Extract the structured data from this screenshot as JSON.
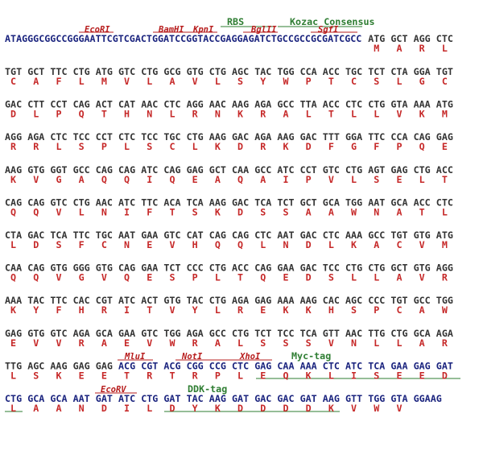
{
  "header": {
    "sequence": "ATAGGGCGGCCGGGAATTCGTCGACTGGATCCGGTACCGAGGAGATCTGCCGCCGCGATCGCC",
    "codons": [
      "ATG",
      "GCT",
      "AGG",
      "CTC"
    ],
    "amino_acids": [
      "M",
      "A",
      "R",
      "L"
    ]
  },
  "annotations": [
    "EcoRI",
    "BamHI",
    "KpnI",
    "RBS",
    "BglII",
    "Kozac Consensus",
    "SgfI",
    "MluI",
    "NotI",
    "XhoI",
    "Myc-tag",
    "EcoRV",
    "DDK-tag"
  ],
  "rows": [
    {
      "codons": [
        "TGT",
        "GCT",
        "TTC",
        "CTG",
        "ATG",
        "GTC",
        "CTG",
        "GCG",
        "GTG",
        "CTG",
        "AGC",
        "TAC",
        "TGG",
        "CCA",
        "ACC",
        "TGC",
        "TCT",
        "CTA",
        "GGA",
        "TGT"
      ],
      "amino_acids": [
        "C",
        "A",
        "F",
        "L",
        "M",
        "V",
        "L",
        "A",
        "V",
        "L",
        "S",
        "Y",
        "W",
        "P",
        "T",
        "C",
        "S",
        "L",
        "G",
        "C"
      ]
    },
    {
      "codons": [
        "GAC",
        "CTT",
        "CCT",
        "CAG",
        "ACT",
        "CAT",
        "AAC",
        "CTC",
        "AGG",
        "AAC",
        "AAG",
        "AGA",
        "GCC",
        "TTA",
        "ACC",
        "CTC",
        "CTG",
        "GTA",
        "AAA",
        "ATG"
      ],
      "amino_acids": [
        "D",
        "L",
        "P",
        "Q",
        "T",
        "H",
        "N",
        "L",
        "R",
        "N",
        "K",
        "R",
        "A",
        "L",
        "T",
        "L",
        "L",
        "V",
        "K",
        "M"
      ]
    },
    {
      "codons": [
        "AGG",
        "AGA",
        "CTC",
        "TCC",
        "CCT",
        "CTC",
        "TCC",
        "TGC",
        "CTG",
        "AAG",
        "GAC",
        "AGA",
        "AAG",
        "GAC",
        "TTT",
        "GGA",
        "TTC",
        "CCA",
        "CAG",
        "GAG"
      ],
      "amino_acids": [
        "R",
        "R",
        "L",
        "S",
        "P",
        "L",
        "S",
        "C",
        "L",
        "K",
        "D",
        "R",
        "K",
        "D",
        "F",
        "G",
        "F",
        "P",
        "Q",
        "E"
      ]
    },
    {
      "codons": [
        "AAG",
        "GTG",
        "GGT",
        "GCC",
        "CAG",
        "CAG",
        "ATC",
        "CAG",
        "GAG",
        "GCT",
        "CAA",
        "GCC",
        "ATC",
        "CCT",
        "GTC",
        "CTG",
        "AGT",
        "GAG",
        "CTG",
        "ACC"
      ],
      "amino_acids": [
        "K",
        "V",
        "G",
        "A",
        "Q",
        "Q",
        "I",
        "Q",
        "E",
        "A",
        "Q",
        "A",
        "I",
        "P",
        "V",
        "L",
        "S",
        "E",
        "L",
        "T"
      ]
    },
    {
      "codons": [
        "CAG",
        "CAG",
        "GTC",
        "CTG",
        "AAC",
        "ATC",
        "TTC",
        "ACA",
        "TCA",
        "AAG",
        "GAC",
        "TCA",
        "TCT",
        "GCT",
        "GCA",
        "TGG",
        "AAT",
        "GCA",
        "ACC",
        "CTC"
      ],
      "amino_acids": [
        "Q",
        "Q",
        "V",
        "L",
        "N",
        "I",
        "F",
        "T",
        "S",
        "K",
        "D",
        "S",
        "S",
        "A",
        "A",
        "W",
        "N",
        "A",
        "T",
        "L"
      ]
    },
    {
      "codons": [
        "CTA",
        "GAC",
        "TCA",
        "TTC",
        "TGC",
        "AAT",
        "GAA",
        "GTC",
        "CAT",
        "CAG",
        "CAG",
        "CTC",
        "AAT",
        "GAC",
        "CTC",
        "AAA",
        "GCC",
        "TGT",
        "GTG",
        "ATG"
      ],
      "amino_acids": [
        "L",
        "D",
        "S",
        "F",
        "C",
        "N",
        "E",
        "V",
        "H",
        "Q",
        "Q",
        "L",
        "N",
        "D",
        "L",
        "K",
        "A",
        "C",
        "V",
        "M"
      ]
    },
    {
      "codons": [
        "CAA",
        "CAG",
        "GTG",
        "GGG",
        "GTG",
        "CAG",
        "GAA",
        "TCT",
        "CCC",
        "CTG",
        "ACC",
        "CAG",
        "GAA",
        "GAC",
        "TCC",
        "CTG",
        "CTG",
        "GCT",
        "GTG",
        "AGG"
      ],
      "amino_acids": [
        "Q",
        "Q",
        "V",
        "G",
        "V",
        "Q",
        "E",
        "S",
        "P",
        "L",
        "T",
        "Q",
        "E",
        "D",
        "S",
        "L",
        "L",
        "A",
        "V",
        "R"
      ]
    },
    {
      "codons": [
        "AAA",
        "TAC",
        "TTC",
        "CAC",
        "CGT",
        "ATC",
        "ACT",
        "GTG",
        "TAC",
        "CTG",
        "AGA",
        "GAG",
        "AAA",
        "AAG",
        "CAC",
        "AGC",
        "CCC",
        "TGT",
        "GCC",
        "TGG"
      ],
      "amino_acids": [
        "K",
        "Y",
        "F",
        "H",
        "R",
        "I",
        "T",
        "V",
        "Y",
        "L",
        "R",
        "E",
        "K",
        "K",
        "H",
        "S",
        "P",
        "C",
        "A",
        "W"
      ]
    },
    {
      "codons": [
        "GAG",
        "GTG",
        "GTC",
        "AGA",
        "GCA",
        "GAA",
        "GTC",
        "TGG",
        "AGA",
        "GCC",
        "CTG",
        "TCT",
        "TCC",
        "TCA",
        "GTT",
        "AAC",
        "TTG",
        "CTG",
        "GCA",
        "AGA"
      ],
      "amino_acids": [
        "E",
        "V",
        "V",
        "R",
        "A",
        "E",
        "V",
        "W",
        "R",
        "A",
        "L",
        "S",
        "S",
        "S",
        "V",
        "N",
        "L",
        "L",
        "A",
        "R"
      ]
    },
    {
      "codons": [
        "TTG",
        "AGC",
        "AAG",
        "GAG",
        "GAG",
        "ACG",
        "CGT",
        "ACG",
        "CGG",
        "CCG",
        "CTC",
        "GAG",
        "CAA",
        "AAA",
        "CTC",
        "ATC",
        "TCA",
        "GAA",
        "GAG",
        "GAT"
      ],
      "amino_acids": [
        "L",
        "S",
        "K",
        "E",
        "E",
        "T",
        "R",
        "T",
        "R",
        "P",
        "L",
        "E",
        "Q",
        "K",
        "L",
        "I",
        "S",
        "E",
        "E",
        "D"
      ]
    },
    {
      "codons": [
        "CTG",
        "GCA",
        "GCA",
        "AAT",
        "GAT",
        "ATC",
        "CTG",
        "GAT",
        "TAC",
        "AAG",
        "GAT",
        "GAC",
        "GAC",
        "GAT",
        "AAG",
        "GTT",
        "TGG",
        "GTA",
        "GGAAG"
      ],
      "amino_acids": [
        "L",
        "A",
        "A",
        "N",
        "D",
        "I",
        "L",
        "D",
        "Y",
        "K",
        "D",
        "D",
        "D",
        "D",
        "K",
        "V",
        "W",
        "V"
      ]
    }
  ]
}
